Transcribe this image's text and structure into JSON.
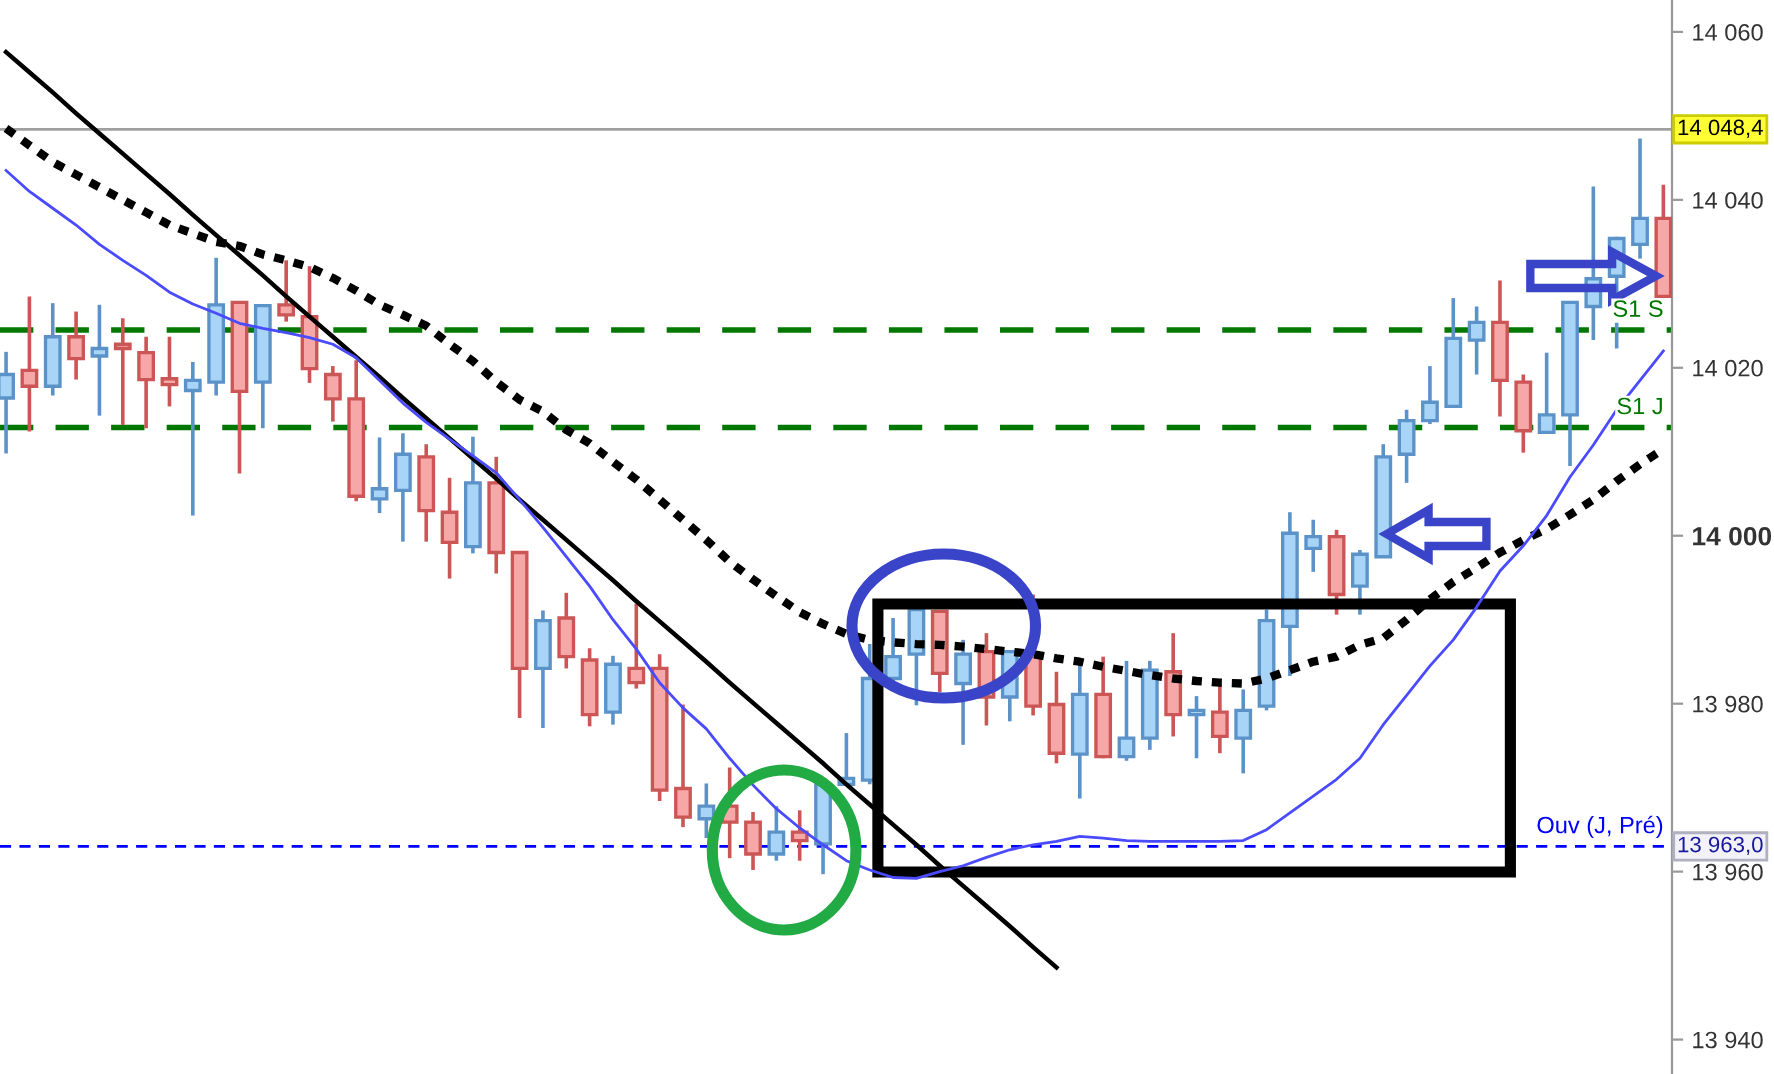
{
  "chart_data": {
    "type": "candlestick",
    "categories": [
      null,
      null,
      null,
      null,
      null,
      null,
      null,
      null,
      null,
      null,
      null,
      null,
      null,
      null,
      null,
      null,
      null,
      null,
      null,
      null,
      null,
      null,
      null,
      null,
      null,
      null,
      null,
      null,
      null,
      null,
      null,
      null,
      null,
      null,
      null,
      null,
      null,
      null,
      null,
      null,
      null,
      null,
      null,
      null,
      null,
      null,
      null,
      null,
      null,
      null,
      null,
      null,
      null,
      null,
      null,
      null,
      null,
      null,
      null,
      null,
      null,
      null,
      null,
      null,
      null,
      null,
      null,
      null,
      null,
      null,
      null,
      null
    ],
    "ohlc": [
      [
        14016.4,
        14021.9,
        14009.8,
        14019.2
      ],
      [
        14019.7,
        14028.5,
        14012.4,
        14017.8
      ],
      [
        14017.8,
        14027.7,
        14016.7,
        14023.7
      ],
      [
        14023.7,
        14026.7,
        14018.6,
        14021.1
      ],
      [
        14021.4,
        14027.5,
        14014.3,
        14022.3
      ],
      [
        14022.8,
        14025.9,
        14013.2,
        14022.3
      ],
      [
        14021.8,
        14023.7,
        14012.8,
        14018.6
      ],
      [
        14018.7,
        14023.7,
        14015.4,
        14018.0
      ],
      [
        14017.3,
        14020.7,
        14002.4,
        14018.5
      ],
      [
        14018.3,
        14033.1,
        14016.7,
        14027.5
      ],
      [
        14027.8,
        14027.8,
        14007.4,
        14017.2
      ],
      [
        14018.3,
        14027.5,
        14012.8,
        14027.4
      ],
      [
        14027.5,
        14032.8,
        14025.5,
        14026.3
      ],
      [
        14026.1,
        14032.1,
        14018.2,
        14019.9
      ],
      [
        14019.2,
        14020.2,
        14013.6,
        14016.3
      ],
      [
        14016.3,
        14020.9,
        14004.1,
        14004.7
      ],
      [
        14004.4,
        14011.7,
        14002.7,
        14005.6
      ],
      [
        14005.4,
        14012.2,
        13999.3,
        14009.7
      ],
      [
        14009.4,
        14010.9,
        13999.3,
        14003.0
      ],
      [
        14002.8,
        14006.9,
        13994.9,
        13999.2
      ],
      [
        13998.7,
        14011.8,
        13997.9,
        14006.3
      ],
      [
        14006.3,
        14009.4,
        13995.5,
        13998.0
      ],
      [
        13998.0,
        13998.0,
        13978.3,
        13984.2
      ],
      [
        13984.2,
        13991.1,
        13977.1,
        13989.9
      ],
      [
        13990.2,
        13993.2,
        13984.2,
        13985.6
      ],
      [
        13985.2,
        13986.6,
        13977.3,
        13978.7
      ],
      [
        13979.0,
        13985.7,
        13977.5,
        13984.7
      ],
      [
        13984.2,
        13991.9,
        13981.8,
        13982.5
      ],
      [
        13984.2,
        13985.9,
        13968.4,
        13969.7
      ],
      [
        13969.9,
        13979.9,
        13965.3,
        13966.5
      ],
      [
        13966.3,
        13970.5,
        13964.0,
        13967.8
      ],
      [
        13967.8,
        13972.4,
        13961.6,
        13965.9
      ],
      [
        13965.9,
        13967.1,
        13960.2,
        13962.1
      ],
      [
        13962.1,
        13967.8,
        13961.3,
        13964.7
      ],
      [
        13964.7,
        13967.3,
        13961.3,
        13963.7
      ],
      [
        13963.3,
        13970.4,
        13959.7,
        13970.4
      ],
      [
        13970.4,
        13976.5,
        13970.4,
        13971.1
      ],
      [
        13970.9,
        13987.1,
        13970.4,
        13983.0
      ],
      [
        13983.0,
        13990.2,
        13982.5,
        13985.6
      ],
      [
        13985.9,
        13991.6,
        13979.8,
        13991.2
      ],
      [
        13991.0,
        13991.0,
        13981.4,
        13983.6
      ],
      [
        13982.4,
        13987.6,
        13975.1,
        13985.9
      ],
      [
        13986.2,
        13988.4,
        13977.4,
        13980.8
      ],
      [
        13980.8,
        13986.2,
        13977.9,
        13986.2
      ],
      [
        13985.9,
        13993.0,
        13978.6,
        13979.7
      ],
      [
        13979.9,
        13983.8,
        13972.9,
        13974.1
      ],
      [
        13974.0,
        13985.1,
        13968.7,
        13981.1
      ],
      [
        13981.1,
        13985.6,
        13973.5,
        13973.7
      ],
      [
        13973.7,
        13985.1,
        13973.2,
        13975.9
      ],
      [
        13975.9,
        13985.1,
        13974.5,
        13984.0
      ],
      [
        13983.8,
        13988.4,
        13976.1,
        13978.7
      ],
      [
        13978.7,
        13980.9,
        13973.5,
        13979.2
      ],
      [
        13979.0,
        13982.4,
        13974.1,
        13976.1
      ],
      [
        13975.9,
        13981.7,
        13971.7,
        13979.2
      ],
      [
        13979.7,
        13991.2,
        13979.2,
        13989.9
      ],
      [
        13989.2,
        14002.8,
        13983.3,
        14000.3
      ],
      [
        13998.5,
        14001.9,
        13995.7,
        13999.9
      ],
      [
        13999.9,
        14000.7,
        13990.6,
        13993.0
      ],
      [
        13994.0,
        13998.3,
        13990.6,
        13997.8
      ],
      [
        13997.5,
        14010.9,
        13997.5,
        14009.4
      ],
      [
        14009.7,
        14015.0,
        14006.3,
        14013.7
      ],
      [
        14013.7,
        14020.2,
        14013.3,
        14015.9
      ],
      [
        14015.4,
        14028.3,
        14015.4,
        14023.5
      ],
      [
        14023.3,
        14027.3,
        14019.2,
        14025.4
      ],
      [
        14025.4,
        14030.4,
        14014.2,
        14018.5
      ],
      [
        14018.3,
        14019.2,
        14009.9,
        14012.5
      ],
      [
        14012.3,
        14021.8,
        14012.3,
        14014.4
      ],
      [
        14014.4,
        14027.8,
        14008.3,
        14027.8
      ],
      [
        14027.3,
        14041.6,
        14023.3,
        14030.6
      ],
      [
        14030.9,
        14035.6,
        14022.3,
        14035.4
      ],
      [
        14034.7,
        14047.3,
        14033.0,
        14037.8
      ],
      [
        14037.8,
        14041.8,
        14028.3,
        14028.5
      ]
    ],
    "series": [
      {
        "type": "line",
        "color": "#000000",
        "line_style": "dotted",
        "values": [
          14048.5,
          14046.5,
          14044.5,
          14043,
          14041.5,
          14040,
          14038.5,
          14037,
          14036,
          14035,
          14034.5,
          14033.5,
          14032.8,
          14032,
          14030.7,
          14029.2,
          14027.5,
          14026.3,
          14025,
          14022.8,
          14020.8,
          14018.3,
          14016.2,
          14014.8,
          14012.6,
          14011.0,
          14008.8,
          14006.7,
          14004.3,
          14001.9,
          13999.5,
          13996.9,
          13994.8,
          13992.8,
          13990.9,
          13989.5,
          13988.3,
          13987.6,
          13987.3,
          13987.1,
          13987,
          13986.8,
          13986.5,
          13986.2,
          13985.9,
          13985.4,
          13985,
          13984.4,
          13983.9,
          13983.4,
          13983,
          13982.7,
          13982.5,
          13982.4,
          13983,
          13984,
          13985,
          13985.6,
          13987,
          13987.8,
          13990,
          13992.4,
          13994.5,
          13996.2,
          13998,
          13999.5,
          14000.8,
          14002.5,
          14004.3,
          14006.5,
          14008.5,
          14010.3
        ]
      },
      {
        "type": "line",
        "color": "#4a4aff",
        "line_style": "solid",
        "values": [
          14043.5,
          14041,
          14039,
          14037,
          14034.7,
          14032.8,
          14031,
          14029,
          14027.6,
          14026.5,
          14025.3,
          14024.7,
          14024.2,
          14023.6,
          14022.8,
          14021.2,
          14018.5,
          14015.8,
          14013.5,
          14011.5,
          14009.5,
          14007.5,
          14004.3,
          14001,
          13997.5,
          13994,
          13990,
          13986.5,
          13982.5,
          13979.5,
          13977,
          13973.5,
          13970.3,
          13967.5,
          13965.2,
          13963.2,
          13961.3,
          13960.2,
          13959.3,
          13959.2,
          13960,
          13960.7,
          13961.7,
          13962.6,
          13963.2,
          13963.6,
          13964.2,
          13964,
          13963.7,
          13963.6,
          13963.6,
          13963.6,
          13963.6,
          13963.7,
          13965,
          13967,
          13969,
          13971,
          13973.5,
          13977.5,
          13981,
          13984.5,
          13987.6,
          13991.5,
          13995.8,
          13998.8,
          14002.4,
          14007,
          14010.8,
          14015,
          14018.5,
          14022
        ]
      },
      {
        "type": "line",
        "color": "#000000",
        "line_style": "solid",
        "values": [
          14057.6,
          14055.2,
          14052.8,
          14050.3,
          14047.9,
          14045.5,
          14043.1,
          14040.7,
          14038.2,
          14035.8,
          14033.4,
          14031.0,
          14028.5,
          14026.1,
          14023.7,
          14021.3,
          14018.9,
          14016.4,
          14014.0,
          14011.6,
          14009.2,
          14006.8,
          14004.3,
          14001.9,
          13999.5,
          13997.1,
          13994.7,
          13992.2,
          13989.8,
          13987.4,
          13985.0,
          13982.5,
          13980.1,
          13977.7,
          13975.3,
          13972.9,
          13970.4,
          13968.0,
          13965.6,
          13963.2,
          13960.7,
          13958.3,
          13955.9,
          13953.5,
          13951.0,
          13948.6,
          null,
          null,
          null,
          null,
          null,
          null,
          null,
          null,
          null,
          null,
          null,
          null,
          null,
          null,
          null,
          null,
          null,
          null,
          null,
          null,
          null,
          null,
          null,
          null,
          null,
          null
        ]
      }
    ],
    "ylim": [
      13935.9,
      14063.8
    ],
    "yticks": [
      {
        "value": 13940,
        "label": "13 940"
      },
      {
        "value": 13960,
        "label": "13 960"
      },
      {
        "value": 13980,
        "label": "13 980"
      },
      {
        "value": 14000,
        "label": "14 000"
      },
      {
        "value": 14020,
        "label": "14 020"
      },
      {
        "value": 14040,
        "label": "14 040"
      },
      {
        "value": 14060,
        "label": "14 060"
      }
    ],
    "tick_labels": "y",
    "ref_lines": [
      {
        "axis": "y",
        "value": 14048.4,
        "label": "14 048,4",
        "color": "#a0a0a0",
        "line_style": "solid"
      },
      {
        "axis": "y",
        "value": 13963.0,
        "label": "Ouv (J, Pré)",
        "color": "#0000ff",
        "line_style": "dashed"
      },
      {
        "axis": "y",
        "value": 14024.5,
        "label": "S1 S",
        "color": "#007800",
        "line_style": "dashed"
      },
      {
        "axis": "y",
        "value": 14012.9,
        "label": "S1 J",
        "color": "#007800",
        "line_style": "dashed"
      }
    ],
    "annotations": [
      "13 963,0"
    ]
  }
}
